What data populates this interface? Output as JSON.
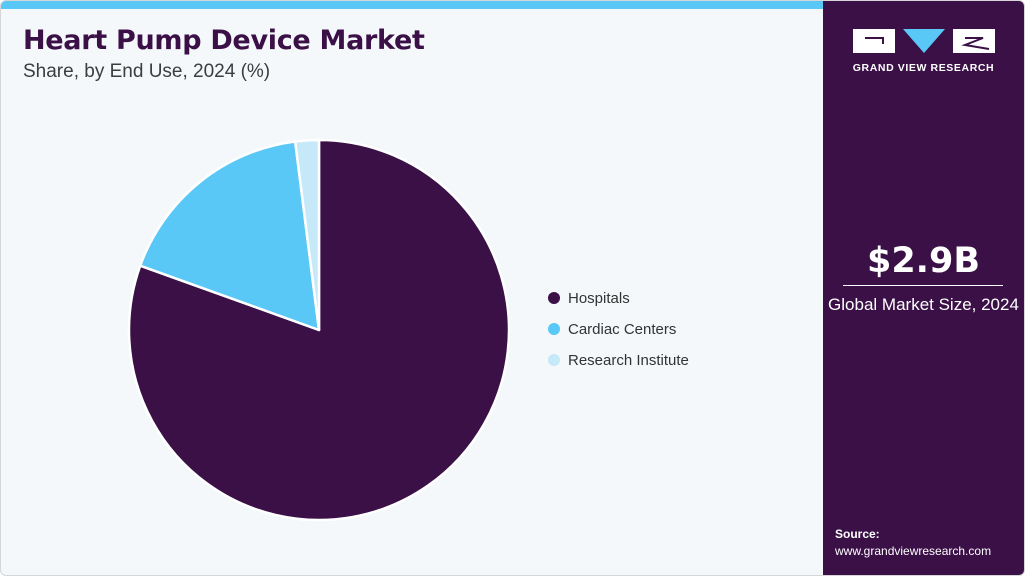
{
  "header": {
    "title": "Heart Pump Device Market",
    "subtitle": "Share, by End Use, 2024 (%)"
  },
  "chart_data": {
    "type": "pie",
    "title": "Heart Pump Device Market",
    "subtitle": "Share, by End Use, 2024 (%)",
    "categories": [
      "Hospitals",
      "Cardiac Centers",
      "Research Institute"
    ],
    "values": [
      80.5,
      17.5,
      2.0
    ],
    "colors": [
      "#3a1046",
      "#5ac8f6",
      "#c6e9f9"
    ],
    "legend_position": "right",
    "start_angle_deg": 0,
    "direction": "clockwise"
  },
  "sidebar": {
    "logo_icon": "gvr-logo-icon",
    "logo_text": "GRAND VIEW RESEARCH",
    "market_size": "$2.9B",
    "market_label": "Global Market Size, 2024",
    "source_label": "Source:",
    "source_url": "www.grandviewresearch.com"
  },
  "colors": {
    "brand_dark": "#3a1046",
    "accent": "#5ac8f6",
    "background": "#f4f8fb"
  }
}
